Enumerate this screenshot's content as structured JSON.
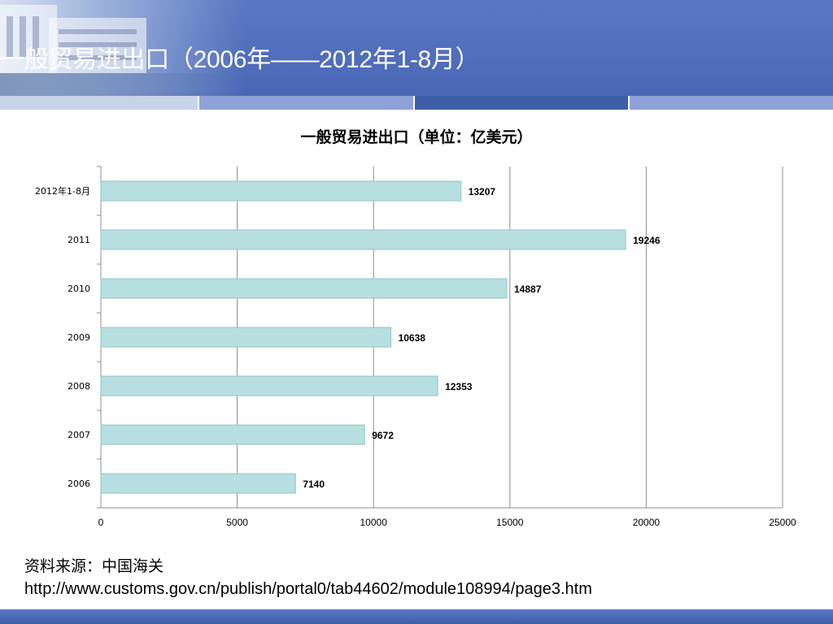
{
  "slide": {
    "title": "一般贸易进出口（2006年——2012年1-8月）"
  },
  "colors": {
    "header_blue": "#4a67b6",
    "bar_fill": "#b7dfe0",
    "bar_stroke": "#8fc6c8",
    "divider_light": "#c8d3ea",
    "divider_mid": "#8ea2d6",
    "divider_dark": "#3f5ea9"
  },
  "chart_data": {
    "type": "bar",
    "orientation": "horizontal",
    "title": "一般贸易进出口（单位：亿美元）",
    "categories": [
      "2012年1-8月",
      "2011",
      "2010",
      "2009",
      "2008",
      "2007",
      "2006"
    ],
    "values": [
      13207,
      19246,
      14887,
      10638,
      12353,
      9672,
      7140
    ],
    "xlim": [
      0,
      25000
    ],
    "xticks": [
      0,
      5000,
      10000,
      15000,
      20000,
      25000
    ],
    "grid": true,
    "legend": "none"
  },
  "source": {
    "label": "资料来源：中国海关",
    "url": "http://www.customs.gov.cn/publish/portal0/tab44602/module108994/page3.htm"
  }
}
